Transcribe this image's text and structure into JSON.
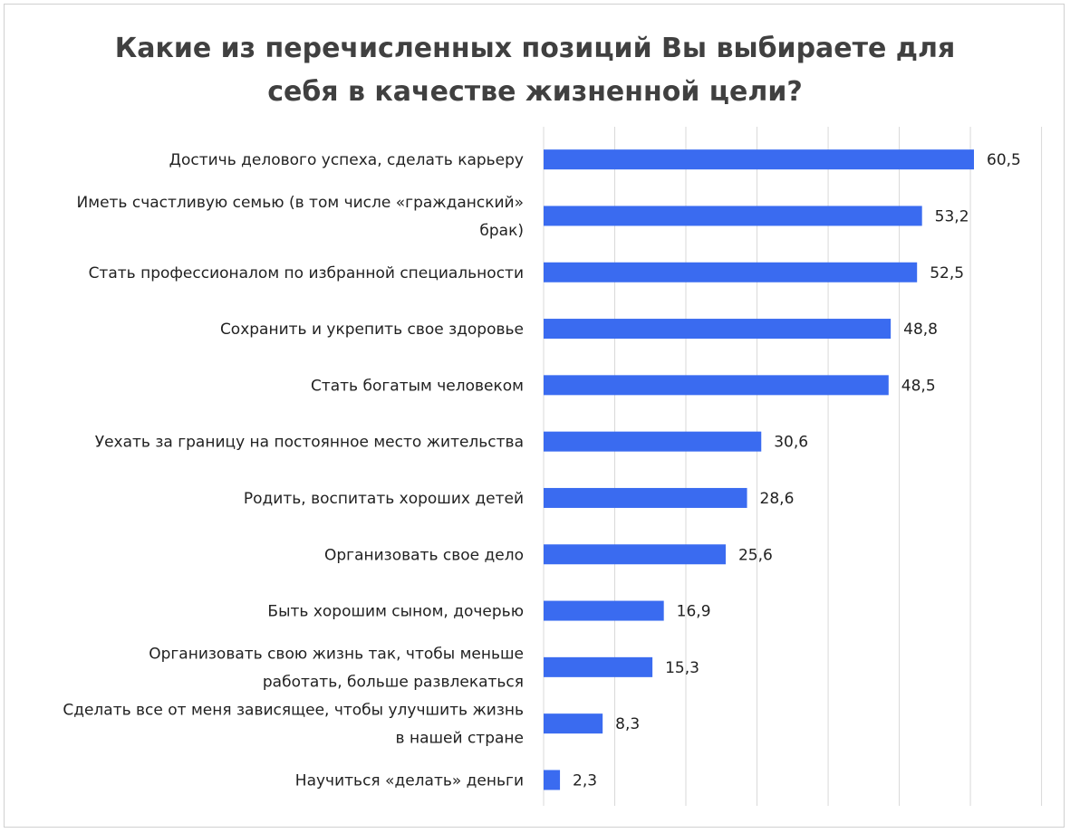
{
  "chart_data": {
    "type": "bar",
    "orientation": "horizontal",
    "title": [
      "Какие из перечисленных позиций Вы выбираете для",
      "себя в качестве жизненной цели?"
    ],
    "categories": [
      [
        "Достичь делового успеха, сделать карьеру"
      ],
      [
        "Иметь счастливую семью (в том числе «гражданский»",
        "брак)"
      ],
      [
        "Стать профессионалом по избранной специальности"
      ],
      [
        "Сохранить и  укрепить свое здоровье"
      ],
      [
        "Стать богатым человеком"
      ],
      [
        "Уехать за границу на постоянное место жительства"
      ],
      [
        "Родить, воспитать хороших детей"
      ],
      [
        "Организовать свое дело"
      ],
      [
        "Быть хорошим сыном, дочерью"
      ],
      [
        "Организовать свою жизнь так, чтобы меньше",
        "работать, больше развлекаться"
      ],
      [
        "Сделать все от меня зависящее, чтобы улучшить жизнь",
        "в нашей стране"
      ],
      [
        "Научиться «делать» деньги"
      ]
    ],
    "values": [
      60.5,
      53.2,
      52.5,
      48.8,
      48.5,
      30.6,
      28.6,
      25.6,
      16.9,
      15.3,
      8.3,
      2.3
    ],
    "value_labels": [
      "60,5",
      "53,2",
      "52,5",
      "48,8",
      "48,5",
      "30,6",
      "28,6",
      "25,6",
      "16,9",
      "15,3",
      "8,3",
      "2,3"
    ],
    "xlim": [
      0,
      70
    ],
    "grid": "vertical",
    "bar_color": "#3a6bf0",
    "grid_color": "#d9d9d9"
  }
}
